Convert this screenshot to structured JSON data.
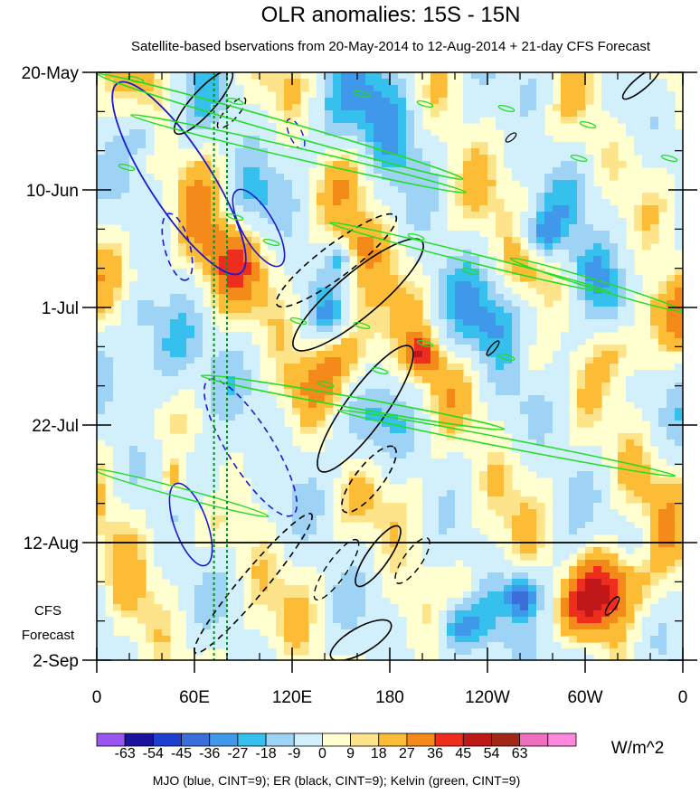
{
  "chart_data": {
    "type": "heatmap",
    "title": "OLR anomalies: 15S - 15N",
    "subtitle": "Satellite-based bservations from 20-May-2014 to 12-Aug-2014 + 21-day CFS Forecast",
    "x_ticks": [
      "0",
      "60E",
      "120E",
      "180",
      "120W",
      "60W",
      "0"
    ],
    "x_tick_values": [
      0,
      60,
      120,
      180,
      240,
      300,
      360
    ],
    "xlim": [
      0,
      360
    ],
    "y_ticks": [
      "20-May",
      "10-Jun",
      "1-Jul",
      "22-Jul",
      "12-Aug",
      "2-Sep"
    ],
    "y_tick_days": [
      0,
      21,
      42,
      63,
      84,
      105
    ],
    "ylim_days": [
      0,
      105
    ],
    "observation_end": "12-Aug",
    "forecast_label_line1": "CFS",
    "forecast_label_line2": "Forecast",
    "reference_longitudes": [
      72,
      80
    ],
    "colorbar": {
      "levels": [
        "-63",
        "-54",
        "-45",
        "-36",
        "-27",
        "-18",
        "-9",
        "0",
        "9",
        "18",
        "27",
        "36",
        "45",
        "54",
        "63"
      ],
      "colors": [
        "#9a55f0",
        "#1c12a0",
        "#1f3fd0",
        "#3a6ed8",
        "#3f98ea",
        "#35c0ee",
        "#9ed3f6",
        "#d2f0fb",
        "#ffffd0",
        "#fde38a",
        "#fcbc35",
        "#f48a1a",
        "#ef2d1e",
        "#c01818",
        "#a4281a",
        "#f06ec0",
        "#ff88dd"
      ],
      "units": "W/m^2"
    },
    "contours": {
      "mjo": {
        "color": "#1919d0"
      },
      "er": {
        "color": "#000000"
      },
      "kelvin": {
        "color": "#22dd22"
      }
    },
    "footer": "MJO (blue, CINT=9); ER (black, CINT=9); Kelvin (green, CINT=9)"
  }
}
